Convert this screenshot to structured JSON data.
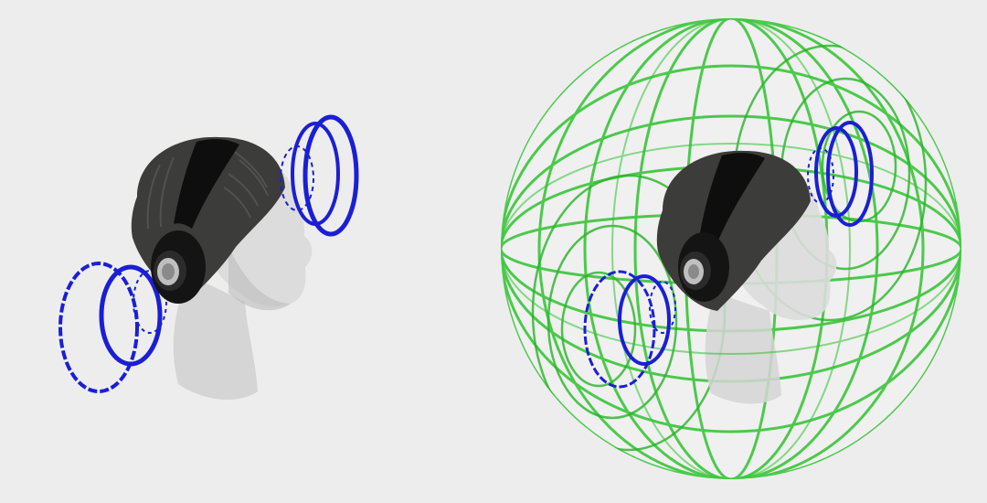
{
  "figure": {
    "panels": [
      {
        "id": "stereo",
        "description_key": "headphones-with-directional-sound-waves",
        "colors": {
          "wave": "#1a1fd6",
          "hair": "#3c3c3a",
          "band": "#0e0e0e",
          "skin": "#d3d3d3"
        }
      },
      {
        "id": "spatial",
        "description_key": "headphones-inside-spherical-sound-field",
        "colors": {
          "wave": "#1a1fd6",
          "sphere": "#2fc22f",
          "hair": "#3c3c3a",
          "band": "#0e0e0e",
          "skin": "#d3d3d3"
        }
      }
    ]
  }
}
